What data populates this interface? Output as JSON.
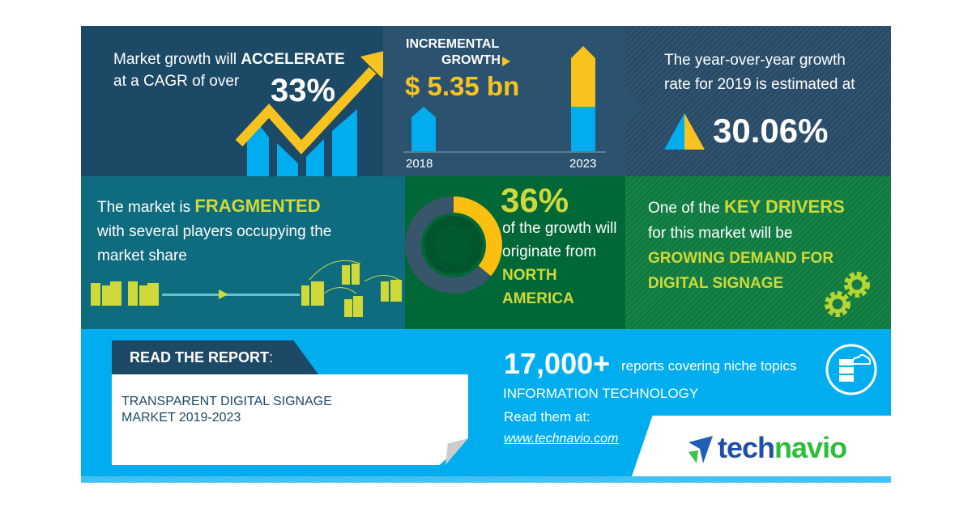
{
  "colors": {
    "navy": "#1c4966",
    "slate": "#2b5370",
    "teal": "#0f6b7e",
    "green_dark": "#006837",
    "green": "#0e7a3f",
    "sky": "#00aeef",
    "yellow": "#f9c31f",
    "lime": "#cfd93a"
  },
  "cagr": {
    "line1_prefix": "Market growth will ",
    "line1_bold": "ACCELERATE",
    "line2": "at a CAGR of over",
    "value": "33%"
  },
  "incremental": {
    "title1": "INCREMENTAL",
    "title2": "GROWTH",
    "value": "$ 5.35 bn",
    "year_start": "2018",
    "year_end": "2023"
  },
  "yoy": {
    "line1": "The year-over-year growth",
    "line2": "rate for 2019 is estimated at",
    "value": "30.06%"
  },
  "fragmented": {
    "prefix": "The market is ",
    "bold": "FRAGMENTED",
    "line2": "with several players occupying the",
    "line3": "market share"
  },
  "region": {
    "value": "36%",
    "share": 0.36,
    "line1": "of the growth will",
    "line2": "originate from",
    "region": "NORTH AMERICA"
  },
  "drivers": {
    "prefix": "One of the ",
    "bold": "KEY DRIVERS",
    "line2": "for this market will be",
    "driver1": "GROWING DEMAND FOR",
    "driver2": "DIGITAL SIGNAGE"
  },
  "report": {
    "label": "READ THE REPORT",
    "colon": ":",
    "title1": "TRANSPARENT DIGITAL SIGNAGE",
    "title2": "MARKET 2019-2023"
  },
  "promo": {
    "count": "17,000+",
    "count_text": "reports covering niche topics",
    "category": "INFORMATION TECHNOLOGY",
    "read": "Read them at:",
    "url": "www.technavio.com"
  },
  "logo": {
    "part1": "tech",
    "part2": "navio"
  }
}
